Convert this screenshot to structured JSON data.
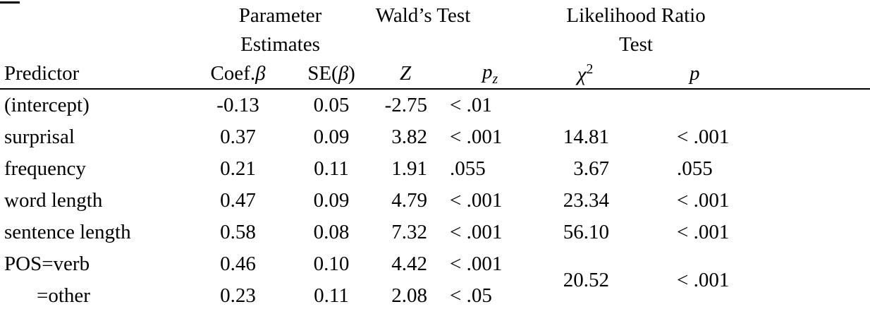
{
  "colors": {
    "background": "#ffffff",
    "text": "#000000",
    "rule": "#000000"
  },
  "table": {
    "groups": [
      {
        "line1": "Parameter",
        "line2": "Estimates"
      },
      {
        "line1": "Wald’s Test",
        "line2": ""
      },
      {
        "line1": "Likelihood Ratio",
        "line2": "Test"
      }
    ],
    "columns": {
      "predictor": "Predictor",
      "coef_text": "Coef.",
      "coef_sym": "β",
      "se_open": "SE(",
      "se_sym": "β",
      "se_close": ")",
      "z": "Z",
      "pz_base": "p",
      "pz_sub": "z",
      "chi_base": "χ",
      "chi_sup": "2",
      "p": "p"
    },
    "rows": [
      {
        "predictor": "(intercept)",
        "coef": "-0.13",
        "se": "0.05",
        "z": "-2.75",
        "pz": "< .01",
        "chi2": "",
        "p": ""
      },
      {
        "predictor": "surprisal",
        "coef": "0.37",
        "se": "0.09",
        "z": "3.82",
        "pz": "< .001",
        "chi2": "14.81",
        "p": "< .001"
      },
      {
        "predictor": "frequency",
        "coef": "0.21",
        "se": "0.11",
        "z": "1.91",
        "pz": ".055",
        "chi2": "3.67",
        "p": ".055"
      },
      {
        "predictor": "word length",
        "coef": "0.47",
        "se": "0.09",
        "z": "4.79",
        "pz": "< .001",
        "chi2": "23.34",
        "p": "< .001"
      },
      {
        "predictor": "sentence length",
        "coef": "0.58",
        "se": "0.08",
        "z": "7.32",
        "pz": "< .001",
        "chi2": "56.10",
        "p": "< .001"
      },
      {
        "predictor": "POS=verb",
        "coef": "0.46",
        "se": "0.10",
        "z": "4.42",
        "pz": "< .001"
      },
      {
        "predictor": "=other",
        "coef": "0.23",
        "se": "0.11",
        "z": "2.08",
        "pz": "< .05"
      }
    ],
    "merged": {
      "chi2": "20.52",
      "p": "< .001"
    }
  }
}
